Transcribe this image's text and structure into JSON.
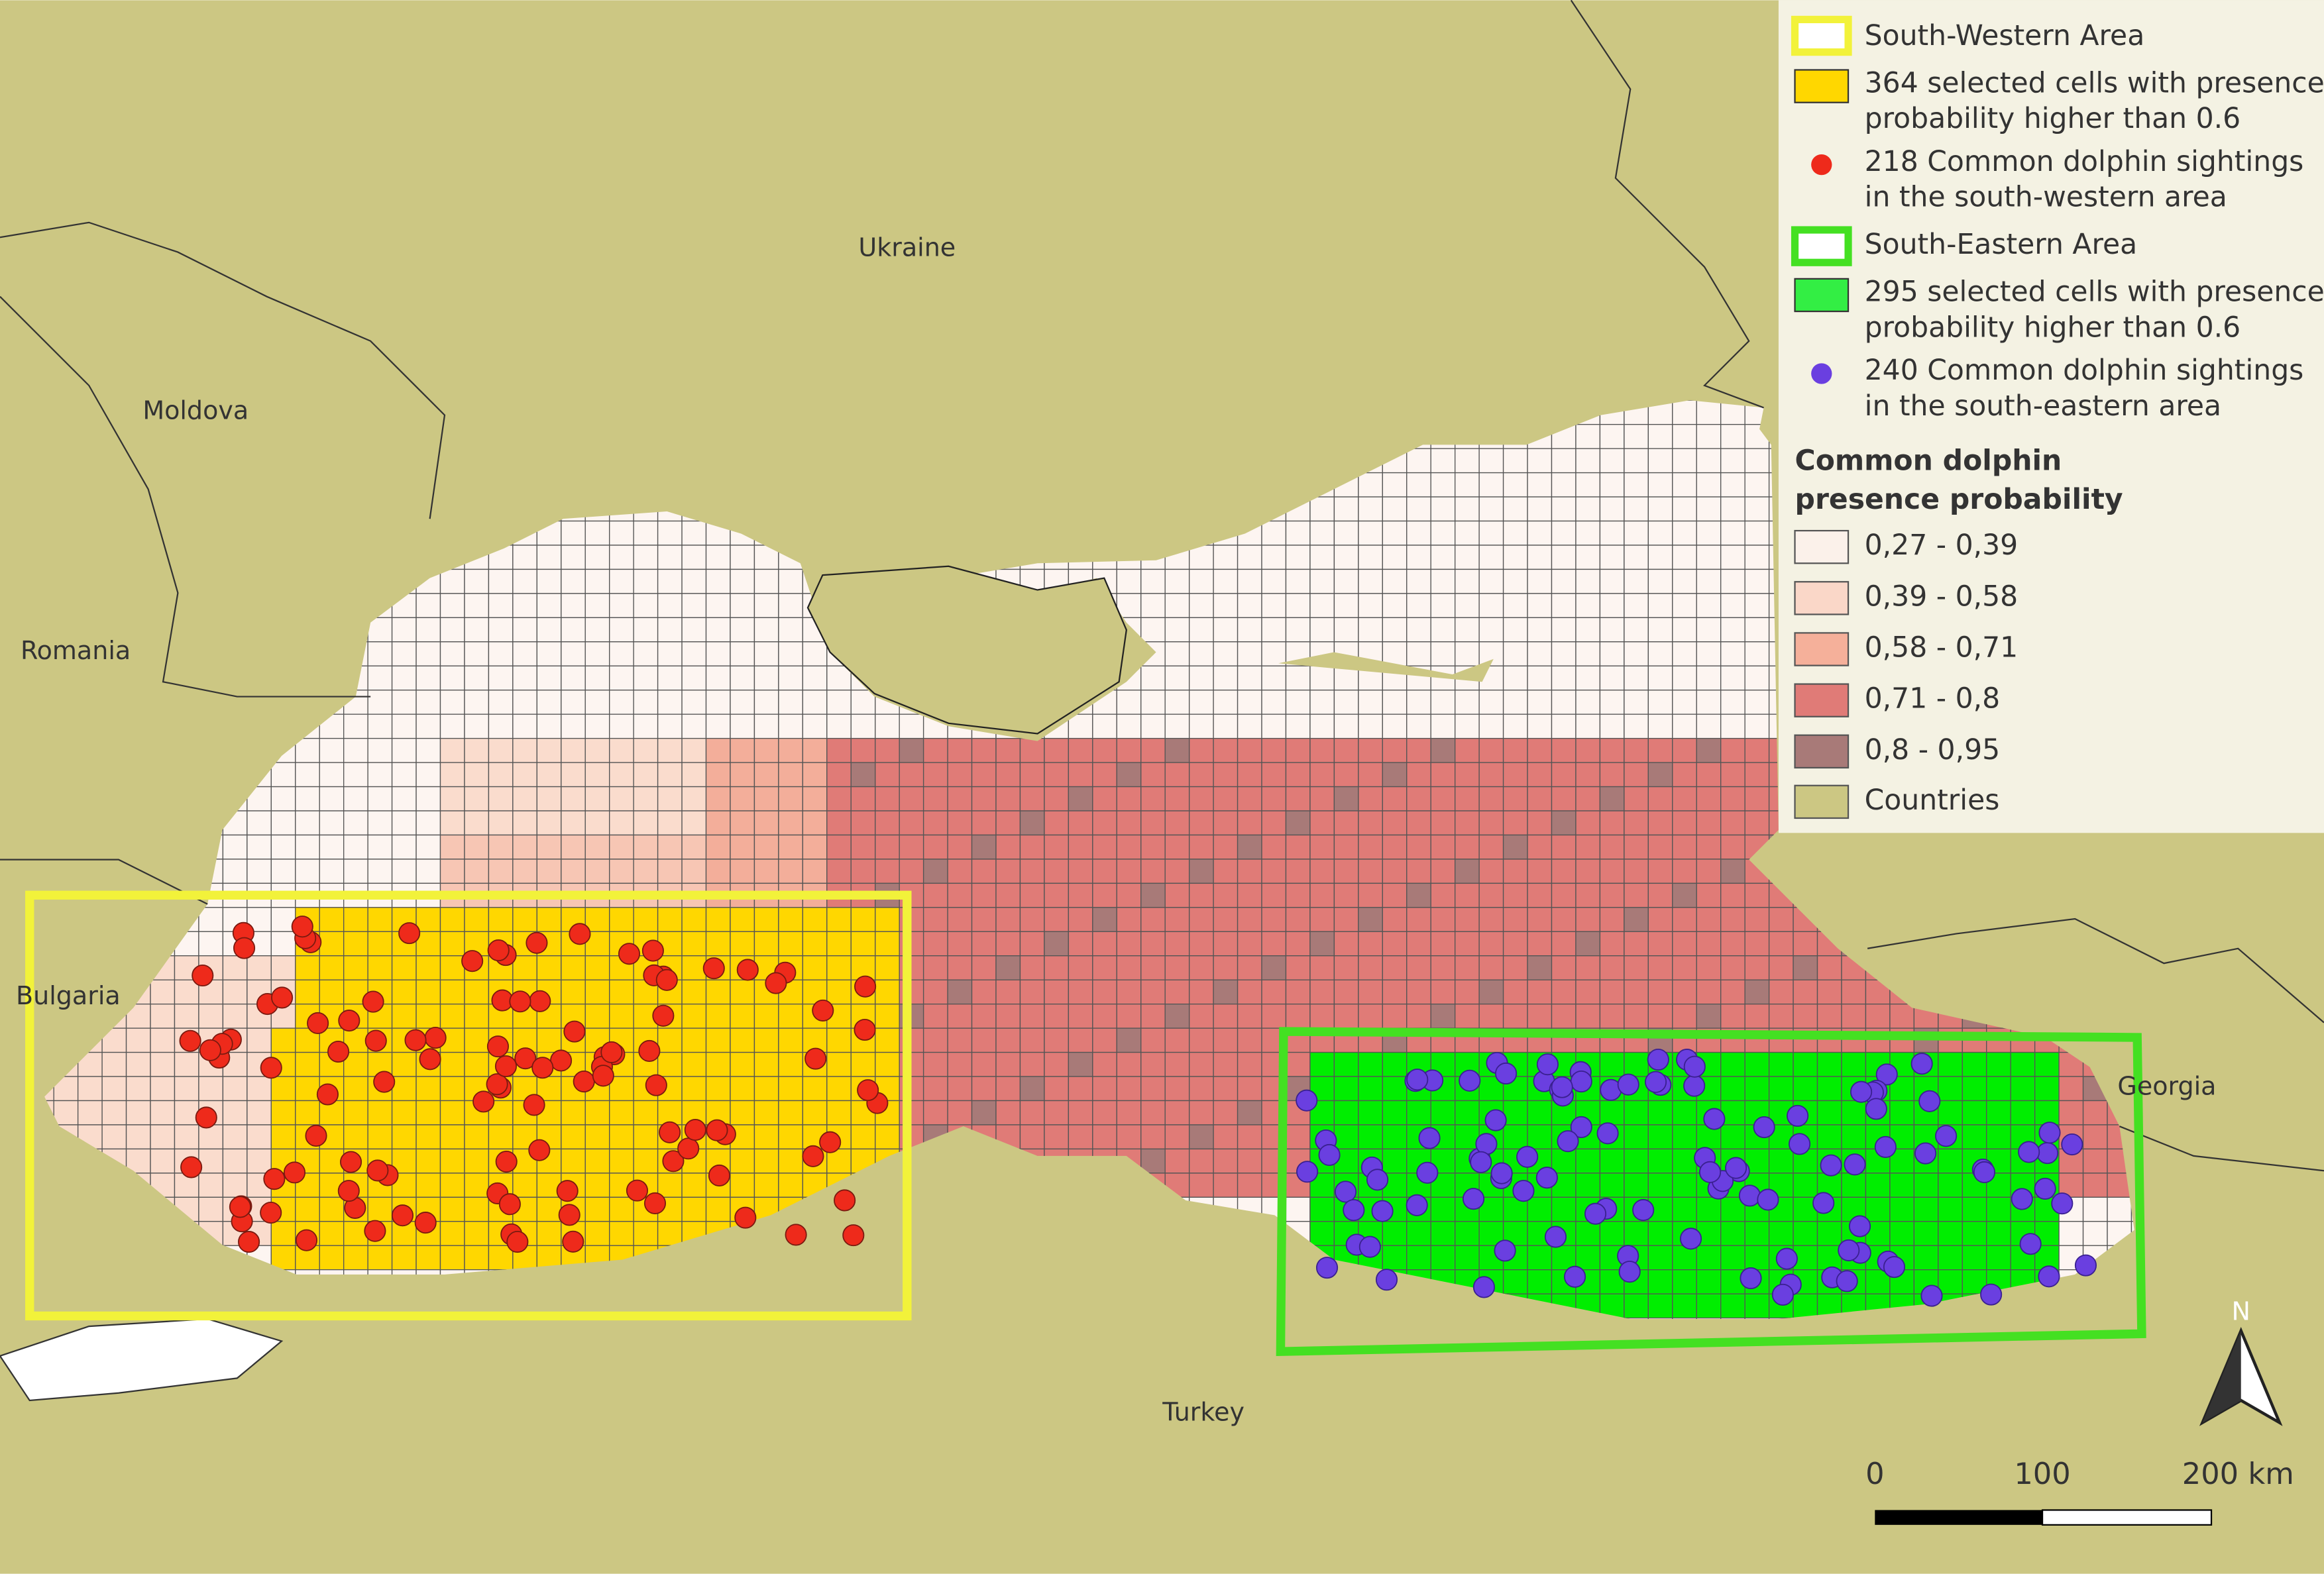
{
  "countries": [
    "Ukraine",
    "Moldova",
    "Romania",
    "Bulgaria",
    "Georgia",
    "Turkey"
  ],
  "legend": {
    "items": [
      {
        "lines": [
          "South-Western Area"
        ]
      },
      {
        "lines": [
          "364 selected cells with presence",
          "probability higher than 0.6"
        ]
      },
      {
        "lines": [
          "218 Common dolphin sightings",
          "in the south-western area"
        ]
      },
      {
        "lines": [
          "South-Eastern Area"
        ]
      },
      {
        "lines": [
          "295 selected cells with presence",
          "probability higher than 0.6"
        ]
      },
      {
        "lines": [
          "240 Common dolphin sightings",
          "in the south-eastern area"
        ]
      }
    ],
    "title_lines": [
      "Common dolphin",
      "presence probability"
    ],
    "classes": [
      "0,27 - 0,39",
      "0,39 - 0,58",
      "0,58 - 0,71",
      "0,71 - 0,8",
      "0,8 - 0,95"
    ],
    "countries_label": "Countries"
  },
  "scale_bar": {
    "labels": [
      "0",
      "100",
      "200 km"
    ]
  },
  "north": "N"
}
